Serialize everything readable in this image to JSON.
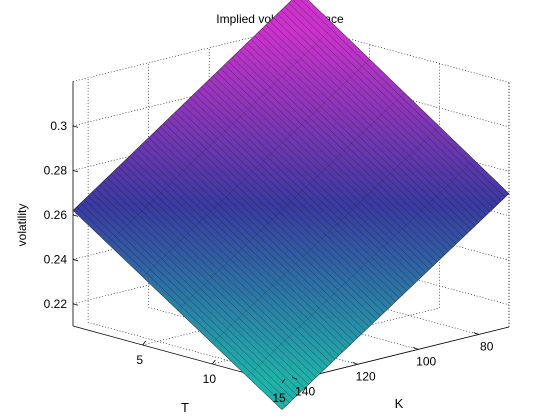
{
  "chart_data": {
    "type": "surface",
    "title": "Implied volatility surface",
    "xlabel": "T",
    "ylabel": "K",
    "zlabel": "volatility",
    "grid": true,
    "x_ticks": [
      5,
      10,
      15
    ],
    "y_ticks": [
      80,
      100,
      120,
      140
    ],
    "z_ticks": [
      0.22,
      0.24,
      0.26,
      0.28,
      0.3
    ],
    "x_tick_labels": [
      "5",
      "10",
      "15"
    ],
    "y_tick_labels": [
      "80",
      "100",
      "120",
      "140"
    ],
    "z_tick_labels": [
      "0.22",
      "0.24",
      "0.26",
      "0.28",
      "0.3"
    ],
    "xlim": [
      0,
      15
    ],
    "ylim": [
      70,
      145
    ],
    "zlim": [
      0.21,
      0.32
    ],
    "corners": [
      {
        "T": 0,
        "K": 145,
        "volatility": 0.262
      },
      {
        "T": 0,
        "K": 70,
        "volatility": 0.335
      },
      {
        "T": 15,
        "K": 70,
        "volatility": 0.27
      },
      {
        "T": 15,
        "K": 145,
        "volatility": 0.198
      }
    ],
    "colormap": [
      "#20b2aa",
      "#3a3aa0",
      "#cc33cc"
    ]
  }
}
